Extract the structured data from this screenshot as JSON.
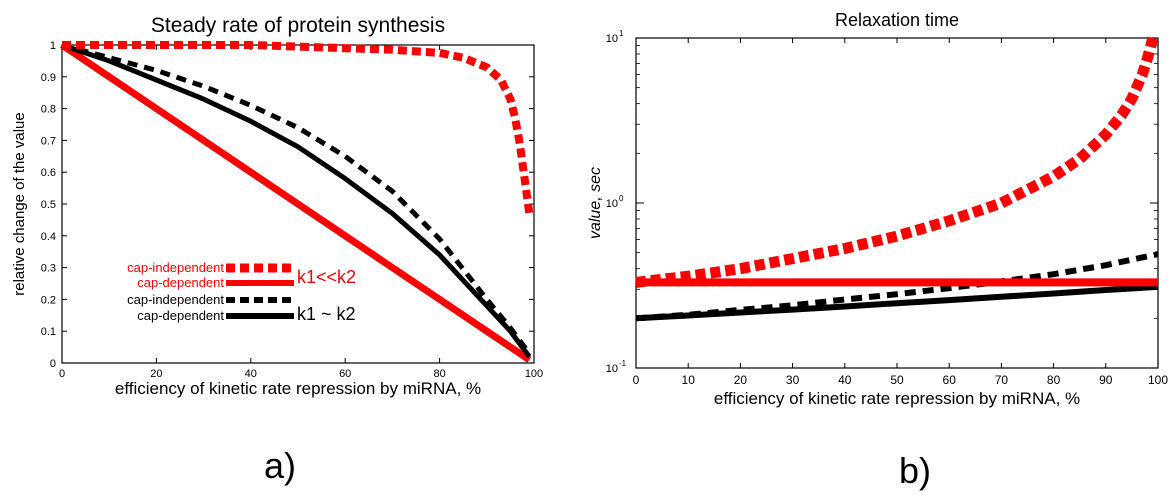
{
  "chart_data": [
    {
      "type": "line",
      "panel_label": "a)",
      "title": "Steady rate of protein synthesis",
      "xlabel": "efficiency of kinetic rate repression by miRNA, %",
      "ylabel": "relative change of the value",
      "xlim": [
        0,
        100
      ],
      "ylim": [
        0,
        1
      ],
      "xticks": [
        "0",
        "20",
        "40",
        "60",
        "80",
        "100"
      ],
      "yticks": [
        "0",
        "0.1",
        "0.2",
        "0.3",
        "0.4",
        "0.5",
        "0.6",
        "0.7",
        "0.8",
        "0.9",
        "1"
      ],
      "grid": false,
      "legend_position": "bottom-left",
      "legend_group_labels": [
        "k1<<k2",
        "k1 ~ k2"
      ],
      "series": [
        {
          "name": "cap-independent",
          "group": "k1<<k2",
          "color": "#ff0000",
          "style": "dashed",
          "x": [
            0,
            10,
            20,
            30,
            40,
            50,
            60,
            70,
            80,
            85,
            90,
            93,
            95,
            96,
            97,
            98,
            99
          ],
          "y": [
            1.0,
            1.0,
            1.0,
            1.0,
            1.0,
            0.995,
            0.99,
            0.985,
            0.975,
            0.96,
            0.93,
            0.89,
            0.83,
            0.77,
            0.69,
            0.58,
            0.47
          ]
        },
        {
          "name": "cap-dependent",
          "group": "k1<<k2",
          "color": "#ff0000",
          "style": "solid",
          "x": [
            0,
            10,
            20,
            30,
            40,
            50,
            60,
            70,
            80,
            90,
            99
          ],
          "y": [
            1.0,
            0.9,
            0.8,
            0.7,
            0.6,
            0.5,
            0.4,
            0.3,
            0.2,
            0.1,
            0.01
          ]
        },
        {
          "name": "cap-independent",
          "group": "k1 ~ k2",
          "color": "#000000",
          "style": "dashed",
          "x": [
            0,
            10,
            20,
            30,
            40,
            50,
            60,
            70,
            80,
            90,
            95,
            99
          ],
          "y": [
            1.0,
            0.96,
            0.92,
            0.87,
            0.81,
            0.74,
            0.65,
            0.54,
            0.39,
            0.2,
            0.11,
            0.03
          ]
        },
        {
          "name": "cap-dependent",
          "group": "k1 ~ k2",
          "color": "#000000",
          "style": "solid",
          "x": [
            0,
            10,
            20,
            30,
            40,
            50,
            60,
            70,
            80,
            90,
            95,
            99
          ],
          "y": [
            1.0,
            0.95,
            0.89,
            0.83,
            0.76,
            0.68,
            0.58,
            0.47,
            0.34,
            0.18,
            0.1,
            0.02
          ]
        }
      ]
    },
    {
      "type": "line",
      "panel_label": "b)",
      "title": "Relaxation time",
      "xlabel": "efficiency of kinetic rate repression by miRNA, %",
      "ylabel": "value, sec",
      "xlim": [
        0,
        100
      ],
      "ylim": [
        0.1,
        10
      ],
      "yscale": "log",
      "xticks": [
        "0",
        "10",
        "20",
        "30",
        "40",
        "50",
        "60",
        "70",
        "80",
        "90",
        "100"
      ],
      "yticks": [
        {
          "value": 0.1,
          "base": "10",
          "exp": "-1"
        },
        {
          "value": 1,
          "base": "10",
          "exp": "0"
        },
        {
          "value": 10,
          "base": "10",
          "exp": "1"
        }
      ],
      "grid": false,
      "series": [
        {
          "color": "#ff0000",
          "style": "dashed",
          "x": [
            0,
            10,
            20,
            30,
            40,
            50,
            60,
            70,
            80,
            85,
            90,
            93,
            95,
            97,
            98,
            99
          ],
          "y": [
            0.33,
            0.36,
            0.4,
            0.46,
            0.53,
            0.63,
            0.78,
            1.0,
            1.45,
            1.85,
            2.6,
            3.4,
            4.3,
            6.0,
            7.6,
            10.0
          ]
        },
        {
          "color": "#ff0000",
          "style": "solid",
          "x": [
            0,
            100
          ],
          "y": [
            0.33,
            0.33
          ]
        },
        {
          "color": "#000000",
          "style": "dashed",
          "x": [
            0,
            10,
            20,
            30,
            40,
            50,
            60,
            70,
            80,
            90,
            100
          ],
          "y": [
            0.2,
            0.21,
            0.225,
            0.24,
            0.26,
            0.28,
            0.305,
            0.335,
            0.37,
            0.42,
            0.49
          ]
        },
        {
          "color": "#000000",
          "style": "solid",
          "x": [
            0,
            10,
            20,
            30,
            40,
            50,
            60,
            70,
            80,
            90,
            100
          ],
          "y": [
            0.2,
            0.208,
            0.217,
            0.226,
            0.236,
            0.247,
            0.258,
            0.27,
            0.283,
            0.297,
            0.31
          ]
        }
      ]
    }
  ]
}
